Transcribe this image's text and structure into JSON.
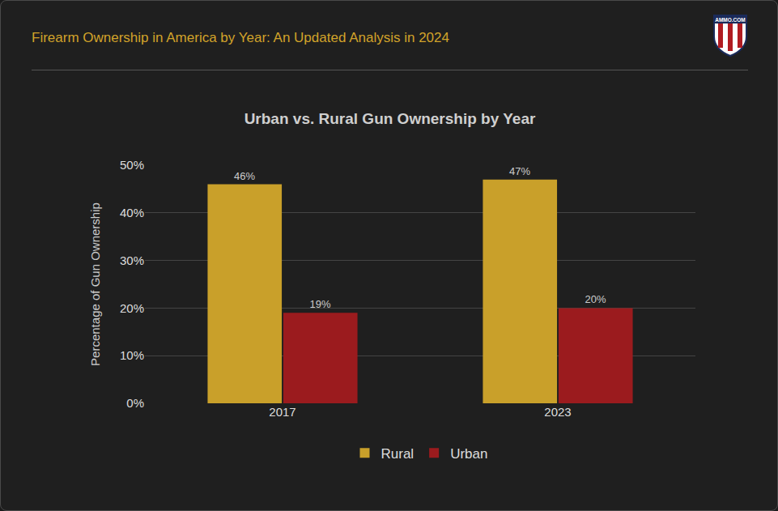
{
  "header": {
    "title": "Firearm Ownership in America by Year: An Updated Analysis in 2024",
    "logo": "AMMO.COM"
  },
  "chart_data": {
    "type": "bar",
    "title": "Urban vs. Rural Gun Ownership by Year",
    "y_label": "Percentage of Gun Ownership",
    "categories": [
      "2017",
      "2023"
    ],
    "series": [
      {
        "name": "Rural",
        "color": "#c9a02a",
        "values": [
          46,
          47
        ],
        "value_labels": [
          "46%",
          "47%"
        ]
      },
      {
        "name": "Urban",
        "color": "#9b1b1e",
        "values": [
          19,
          20
        ],
        "value_labels": [
          "19%",
          "20%"
        ]
      }
    ],
    "ylim": [
      0,
      50
    ],
    "yticks": [
      {
        "value": 0,
        "label": "0%"
      },
      {
        "value": 10,
        "label": "10%"
      },
      {
        "value": 20,
        "label": "20%"
      },
      {
        "value": 30,
        "label": "30%"
      },
      {
        "value": 40,
        "label": "40%"
      },
      {
        "value": 50,
        "label": "50%"
      }
    ],
    "grid": true,
    "legend": "bottom",
    "data_labels": true
  }
}
